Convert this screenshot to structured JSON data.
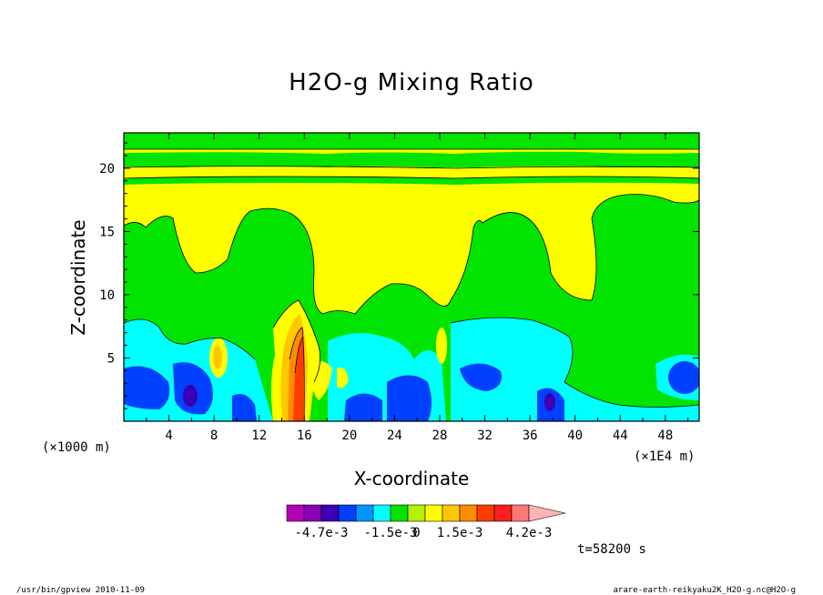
{
  "chart_data": {
    "type": "heatmap",
    "title": "H2O-g Mixing Ratio",
    "xlabel": "X-coordinate",
    "ylabel": "Z-coordinate",
    "x_unit_label": "(×1000 m)",
    "x_scale_label": "(×1E4 m)",
    "x_ticks": [
      4,
      8,
      12,
      16,
      20,
      24,
      28,
      32,
      36,
      40,
      44,
      48
    ],
    "y_ticks": [
      5,
      10,
      15,
      20
    ],
    "xlim": [
      0,
      51
    ],
    "ylim": [
      0,
      22.8
    ],
    "colorbar": {
      "colors": [
        "#b400b4",
        "#8c00b4",
        "#3c00b4",
        "#0040ff",
        "#0096ff",
        "#00ffff",
        "#00e400",
        "#b4f000",
        "#ffff00",
        "#ffc800",
        "#ff8c00",
        "#ff3c00",
        "#ff1e1e",
        "#ff7878",
        "#ffb4b4"
      ],
      "labels": [
        "-4.7e-3",
        "-1.5e-3",
        "0",
        "1.5e-3",
        "4.2e-3"
      ]
    },
    "time_label": "t=58200 s"
  },
  "footer": {
    "left": "/usr/bin/gpview  2010-11-09",
    "right": "arare-earth-reikyaku2K_H2O-g.nc@H2O-g"
  }
}
